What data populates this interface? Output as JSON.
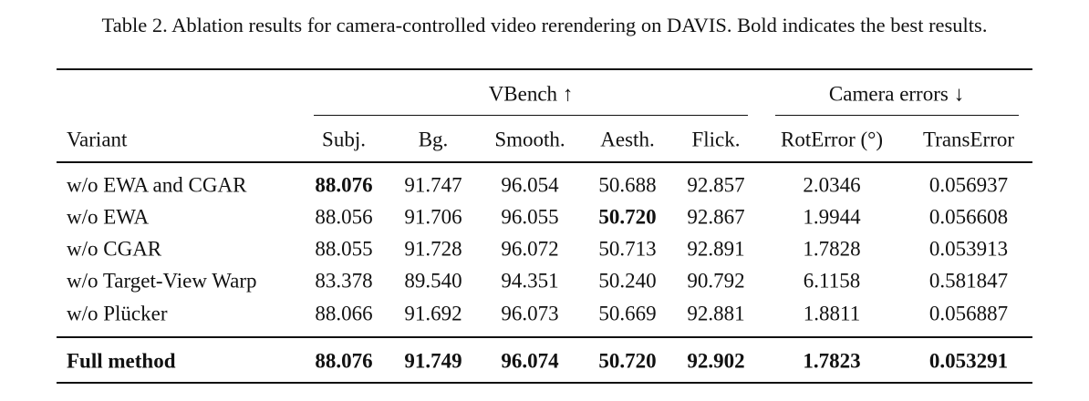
{
  "caption": "Table 2. Ablation results for camera-controlled video rerendering on DAVIS. Bold indicates the best results.",
  "table": {
    "groups": [
      "VBench ↑",
      "Camera errors ↓"
    ],
    "columns": [
      "Variant",
      "Subj.",
      "Bg.",
      "Smooth.",
      "Aesth.",
      "Flick.",
      "RotError (°)",
      "TransError"
    ],
    "rows": [
      {
        "cells": [
          "w/o EWA and CGAR",
          "88.076",
          "91.747",
          "96.054",
          "50.688",
          "92.857",
          "2.0346",
          "0.056937"
        ],
        "bold": [
          1
        ]
      },
      {
        "cells": [
          "w/o EWA",
          "88.056",
          "91.706",
          "96.055",
          "50.720",
          "92.867",
          "1.9944",
          "0.056608"
        ],
        "bold": [
          4
        ]
      },
      {
        "cells": [
          "w/o CGAR",
          "88.055",
          "91.728",
          "96.072",
          "50.713",
          "92.891",
          "1.7828",
          "0.053913"
        ],
        "bold": []
      },
      {
        "cells": [
          "w/o Target-View Warp",
          "83.378",
          "89.540",
          "94.351",
          "50.240",
          "90.792",
          "6.1158",
          "0.581847"
        ],
        "bold": []
      },
      {
        "cells": [
          "w/o Plücker",
          "88.066",
          "91.692",
          "96.073",
          "50.669",
          "92.881",
          "1.8811",
          "0.056887"
        ],
        "bold": []
      },
      {
        "cells": [
          "Full method",
          "88.076",
          "91.749",
          "96.074",
          "50.720",
          "92.902",
          "1.7823",
          "0.053291"
        ],
        "bold": [
          0,
          1,
          2,
          3,
          4,
          5,
          6,
          7
        ]
      }
    ]
  }
}
